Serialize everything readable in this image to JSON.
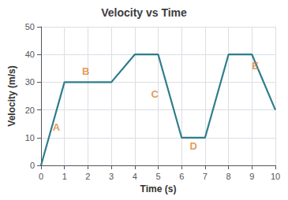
{
  "chart_data": {
    "type": "line",
    "title": "Velocity vs Time",
    "xlabel": "Time (s)",
    "ylabel": "Velocity (m/s)",
    "x": [
      0,
      1,
      2,
      3,
      4,
      5,
      6,
      7,
      8,
      9,
      10
    ],
    "values": [
      0,
      30,
      30,
      30,
      40,
      40,
      10,
      10,
      40,
      40,
      20
    ],
    "color": "#2e7d8c",
    "xlim": [
      0,
      10
    ],
    "ylim": [
      0,
      50
    ],
    "xticks": [
      0,
      1,
      2,
      3,
      4,
      5,
      6,
      7,
      8,
      9,
      10
    ],
    "yticks": [
      0,
      10,
      20,
      30,
      40,
      50
    ],
    "grid": true,
    "annotations": [
      {
        "text": "A",
        "x": 0.5,
        "y": 12,
        "color": "#e08030"
      },
      {
        "text": "B",
        "x": 1.75,
        "y": 32,
        "color": "#e08030"
      },
      {
        "text": "C",
        "x": 4.7,
        "y": 24,
        "color": "#e08030"
      },
      {
        "text": "D",
        "x": 6.35,
        "y": 5,
        "color": "#e08030"
      },
      {
        "text": "E",
        "x": 9.0,
        "y": 34,
        "color": "#e08030"
      }
    ]
  }
}
